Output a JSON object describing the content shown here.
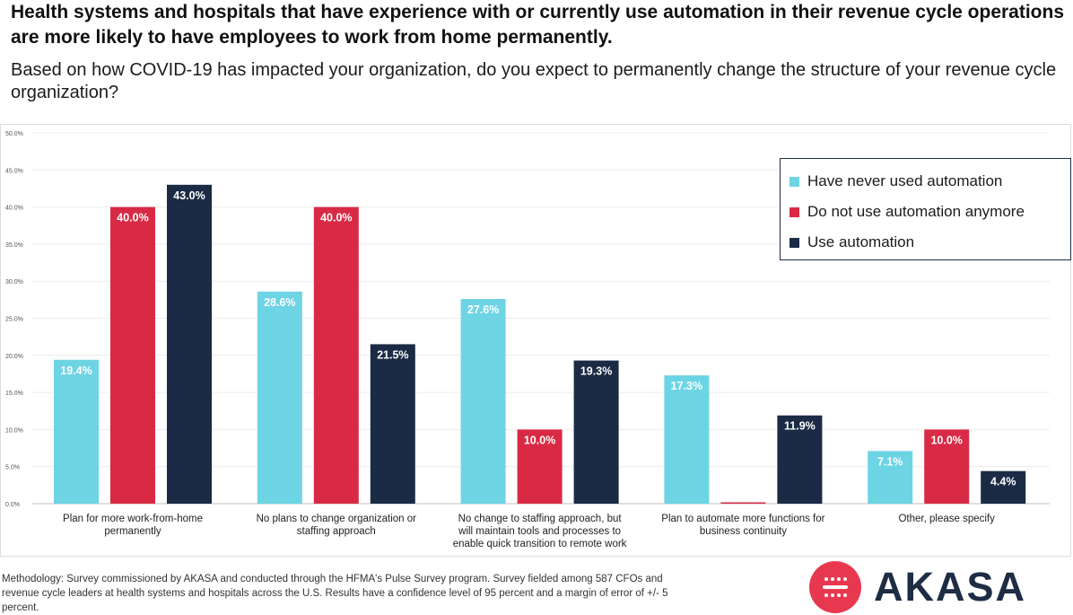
{
  "headline": "Health systems and hospitals that have experience with or currently use automation in their revenue cycle operations are more likely to have employees to work from home permanently.",
  "question": "Based on how COVID-19 has impacted your organization, do you expect to permanently change the structure of your revenue cycle organization?",
  "methodology": "Methodology: Survey commissioned by  AKASA and conducted through the HFMA's Pulse Survey program. Survey fielded among 587 CFOs and revenue cycle leaders at health systems and hospitals across the U.S. Results have a confidence level of 95 percent and a margin of error of +/- 5 percent.",
  "logo": {
    "text": "AKASA",
    "icon": "akasa-logo-icon"
  },
  "colors": {
    "cyan": "#6dd4e4",
    "red": "#d92a45",
    "navy": "#1b2b45"
  },
  "chart_data": {
    "type": "bar",
    "title": "",
    "xlabel": "",
    "ylabel": "",
    "ylim": [
      0,
      50
    ],
    "yticks": [
      "0.0%",
      "5.0%",
      "10.0%",
      "15.0%",
      "20.0%",
      "25.0%",
      "30.0%",
      "35.0%",
      "40.0%",
      "45.0%",
      "50.0%"
    ],
    "categories": [
      [
        "Plan for more  work-from-home",
        "permanently"
      ],
      [
        "No plans to change organization or",
        "staffing approach"
      ],
      [
        "No change to staffing approach, but",
        "will maintain tools and processes to",
        "enable quick transition to remote work"
      ],
      [
        "Plan to automate more functions for",
        "business continuity"
      ],
      [
        "Other, please specify"
      ]
    ],
    "series": [
      {
        "name": "Have never used automation",
        "color": "#6dd4e4",
        "values": [
          19.4,
          28.6,
          27.6,
          17.3,
          7.1
        ],
        "labels": [
          "19.4%",
          "28.6%",
          "27.6%",
          "17.3%",
          "7.1%"
        ]
      },
      {
        "name": "Do not use automation anymore",
        "color": "#d92a45",
        "values": [
          40.0,
          40.0,
          10.0,
          0.0,
          10.0
        ],
        "labels": [
          "40.0%",
          "40.0%",
          "10.0%",
          "",
          "10.0%"
        ]
      },
      {
        "name": "Use automation",
        "color": "#1b2b45",
        "values": [
          43.0,
          21.5,
          19.3,
          11.9,
          4.4
        ],
        "labels": [
          "43.0%",
          "21.5%",
          "19.3%",
          "11.9%",
          "4.4%"
        ]
      }
    ],
    "legend_position": "top-right",
    "grid": true
  }
}
